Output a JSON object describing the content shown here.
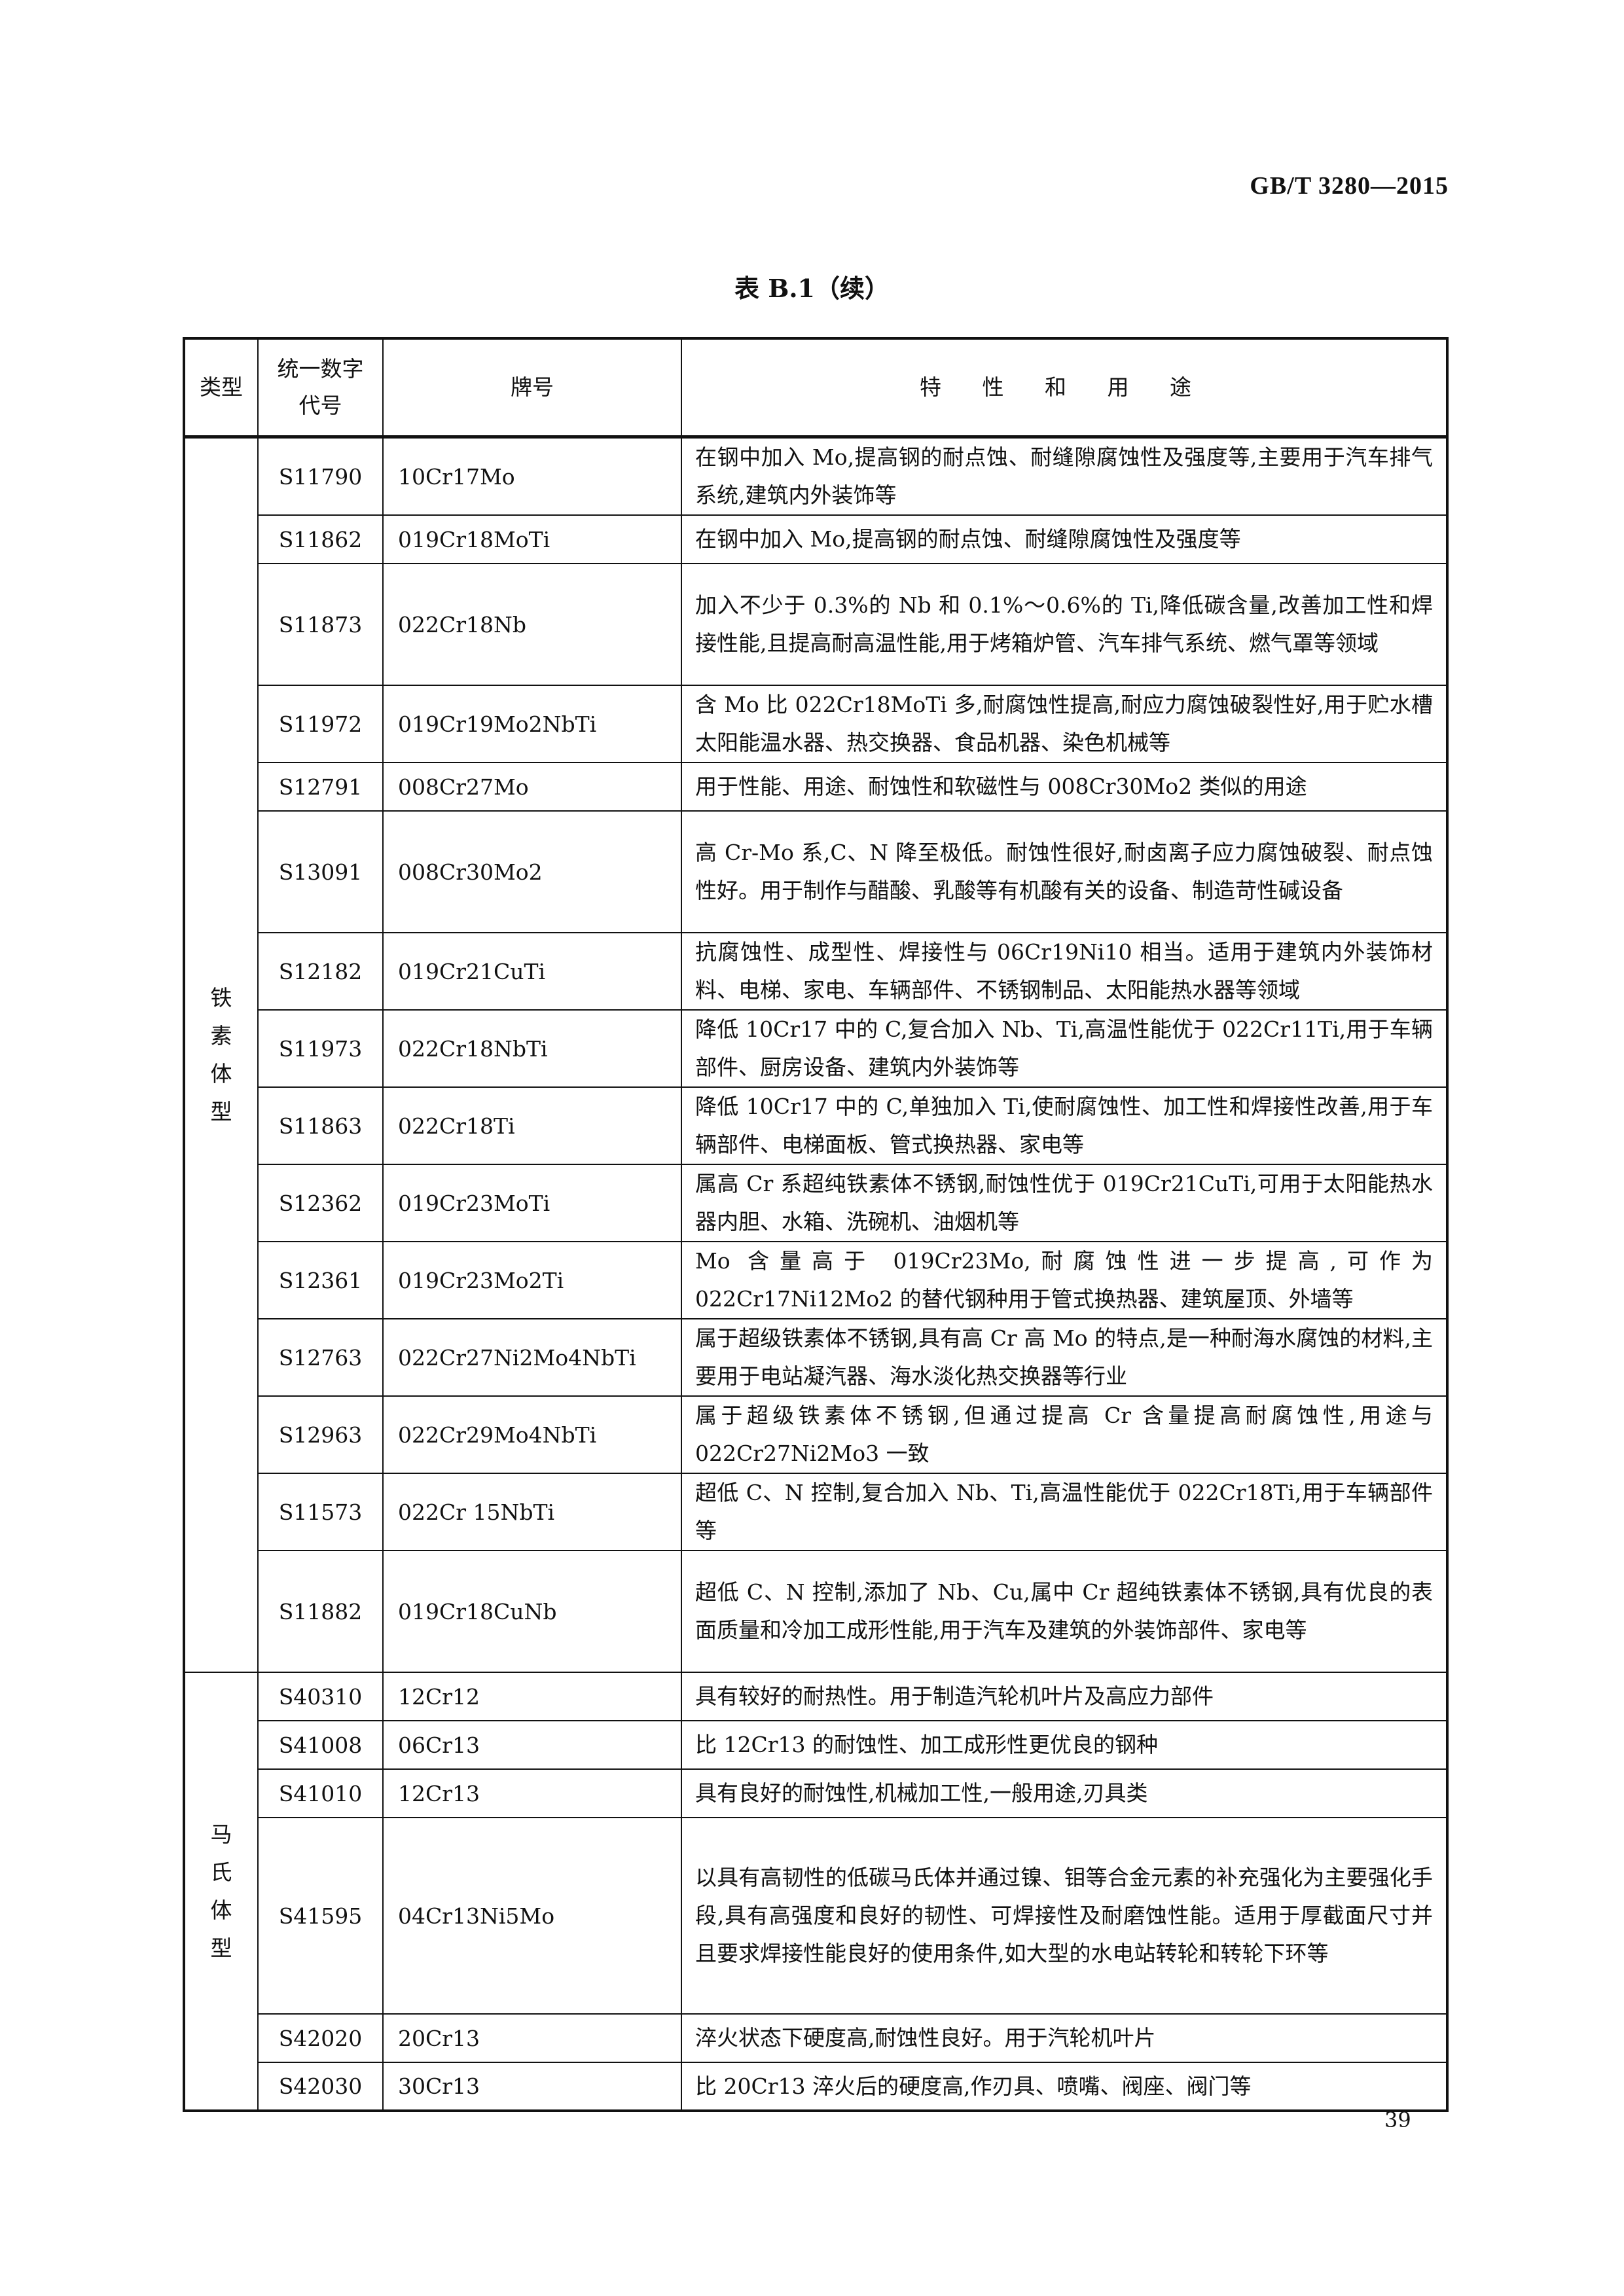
{
  "header": {
    "standard_number": "GB/T 3280—2015",
    "table_title": "表 B.1（续）"
  },
  "columns": {
    "category": "类型",
    "code": "统一数字代号",
    "grade": "牌号",
    "features": "特 性 和 用 途"
  },
  "groups": [
    {
      "category": "铁素体型",
      "rows": [
        {
          "code": "S11790",
          "grade": "10Cr17Mo",
          "desc": "在钢中加入 Mo,提高钢的耐点蚀、耐缝隙腐蚀性及强度等,主要用于汽车排气系统,建筑内外装饰等",
          "lines": 2
        },
        {
          "code": "S11862",
          "grade": "019Cr18MoTi",
          "desc": "在钢中加入 Mo,提高钢的耐点蚀、耐缝隙腐蚀性及强度等",
          "lines": 1
        },
        {
          "code": "S11873",
          "grade": "022Cr18Nb",
          "desc": "加入不少于 0.3%的 Nb 和 0.1%～0.6%的 Ti,降低碳含量,改善加工性和焊接性能,且提高耐高温性能,用于烤箱炉管、汽车排气系统、燃气罩等领域",
          "lines": 3
        },
        {
          "code": "S11972",
          "grade": "019Cr19Mo2NbTi",
          "desc": "含 Mo 比 022Cr18MoTi 多,耐腐蚀性提高,耐应力腐蚀破裂性好,用于贮水槽太阳能温水器、热交换器、食品机器、染色机械等",
          "lines": 2
        },
        {
          "code": "S12791",
          "grade": "008Cr27Mo",
          "desc": "用于性能、用途、耐蚀性和软磁性与 008Cr30Mo2 类似的用途",
          "lines": 1
        },
        {
          "code": "S13091",
          "grade": "008Cr30Mo2",
          "desc": "高 Cr-Mo 系,C、N 降至极低。耐蚀性很好,耐卤离子应力腐蚀破裂、耐点蚀性好。用于制作与醋酸、乳酸等有机酸有关的设备、制造苛性碱设备",
          "lines": 3
        },
        {
          "code": "S12182",
          "grade": "019Cr21CuTi",
          "desc": "抗腐蚀性、成型性、焊接性与 06Cr19Ni10 相当。适用于建筑内外装饰材料、电梯、家电、车辆部件、不锈钢制品、太阳能热水器等领域",
          "lines": 2
        },
        {
          "code": "S11973",
          "grade": "022Cr18NbTi",
          "desc": "降低 10Cr17 中的 C,复合加入 Nb、Ti,高温性能优于 022Cr11Ti,用于车辆部件、厨房设备、建筑内外装饰等",
          "lines": 2
        },
        {
          "code": "S11863",
          "grade": "022Cr18Ti",
          "desc": "降低 10Cr17 中的 C,单独加入 Ti,使耐腐蚀性、加工性和焊接性改善,用于车辆部件、电梯面板、管式换热器、家电等",
          "lines": 2
        },
        {
          "code": "S12362",
          "grade": "019Cr23MoTi",
          "desc": "属高 Cr 系超纯铁素体不锈钢,耐蚀性优于 019Cr21CuTi,可用于太阳能热水器内胆、水箱、洗碗机、油烟机等",
          "lines": 2
        },
        {
          "code": "S12361",
          "grade": "019Cr23Mo2Ti",
          "desc": "Mo 含量高于 019Cr23Mo,耐腐蚀性进一步提高,可作为 022Cr17Ni12Mo2 的替代钢种用于管式换热器、建筑屋顶、外墙等",
          "lines": 2
        },
        {
          "code": "S12763",
          "grade": "022Cr27Ni2Mo4NbTi",
          "desc": "属于超级铁素体不锈钢,具有高 Cr 高 Mo 的特点,是一种耐海水腐蚀的材料,主要用于电站凝汽器、海水淡化热交换器等行业",
          "lines": 2
        },
        {
          "code": "S12963",
          "grade": "022Cr29Mo4NbTi",
          "desc": "属于超级铁素体不锈钢,但通过提高 Cr 含量提高耐腐蚀性,用途与 022Cr27Ni2Mo3 一致",
          "lines": 2
        },
        {
          "code": "S11573",
          "grade": "022Cr 15NbTi",
          "desc": "超低 C、N 控制,复合加入 Nb、Ti,高温性能优于 022Cr18Ti,用于车辆部件等",
          "lines": 2
        },
        {
          "code": "S11882",
          "grade": "019Cr18CuNb",
          "desc": "超低 C、N 控制,添加了 Nb、Cu,属中 Cr 超纯铁素体不锈钢,具有优良的表面质量和冷加工成形性能,用于汽车及建筑的外装饰部件、家电等",
          "lines": 3
        }
      ]
    },
    {
      "category": "马氏体型",
      "rows": [
        {
          "code": "S40310",
          "grade": "12Cr12",
          "desc": "具有较好的耐热性。用于制造汽轮机叶片及高应力部件",
          "lines": 1
        },
        {
          "code": "S41008",
          "grade": "06Cr13",
          "desc": "比 12Cr13 的耐蚀性、加工成形性更优良的钢种",
          "lines": 1
        },
        {
          "code": "S41010",
          "grade": "12Cr13",
          "desc": "具有良好的耐蚀性,机械加工性,一般用途,刃具类",
          "lines": 1
        },
        {
          "code": "S41595",
          "grade": "04Cr13Ni5Mo",
          "desc": "以具有高韧性的低碳马氏体并通过镍、钼等合金元素的补充强化为主要强化手段,具有高强度和良好的韧性、可焊接性及耐磨蚀性能。适用于厚截面尺寸并且要求焊接性能良好的使用条件,如大型的水电站转轮和转轮下环等",
          "lines": 4
        },
        {
          "code": "S42020",
          "grade": "20Cr13",
          "desc": "淬火状态下硬度高,耐蚀性良好。用于汽轮机叶片",
          "lines": 1
        },
        {
          "code": "S42030",
          "grade": "30Cr13",
          "desc": "比 20Cr13 淬火后的硬度高,作刃具、喷嘴、阀座、阀门等",
          "lines": 1
        }
      ]
    }
  ],
  "footer": {
    "page_number": "39"
  }
}
